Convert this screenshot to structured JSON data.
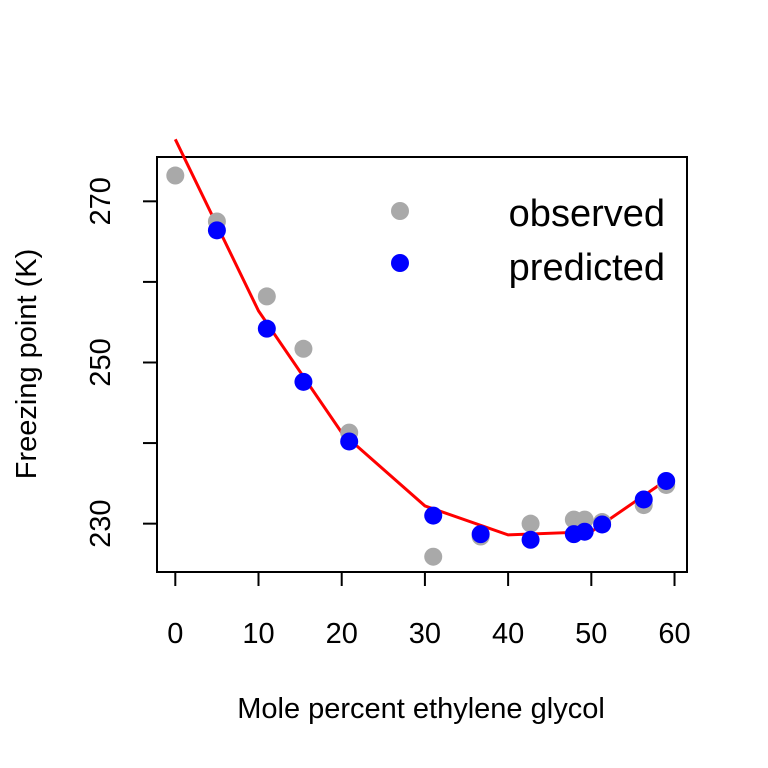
{
  "chart_data": {
    "type": "scatter",
    "title": "",
    "xlabel": "Mole percent ethylene glycol",
    "ylabel": "Freezing point (K)",
    "xlim": [
      -2.2,
      61.5
    ],
    "ylim": [
      224,
      275.5
    ],
    "x_ticks": [
      0,
      10,
      20,
      30,
      40,
      50,
      60
    ],
    "y_ticks_labeled": [
      230,
      250,
      270
    ],
    "y_ticks_minor": [
      240,
      260
    ],
    "grid": false,
    "legend": {
      "position": "top-right",
      "entries": [
        "observed",
        "predicted"
      ]
    },
    "series": [
      {
        "name": "observed",
        "color": "#a9a9a9",
        "marker": "circle",
        "points": [
          [
            0,
            273.2
          ],
          [
            5.0,
            267.5
          ],
          [
            11.0,
            258.2
          ],
          [
            15.4,
            251.7
          ],
          [
            20.9,
            241.3
          ],
          [
            31.0,
            225.9
          ],
          [
            36.7,
            228.4
          ],
          [
            42.7,
            230.0
          ],
          [
            47.9,
            230.5
          ],
          [
            49.2,
            230.5
          ],
          [
            51.3,
            230.2
          ],
          [
            56.3,
            232.3
          ],
          [
            59.0,
            234.8
          ]
        ]
      },
      {
        "name": "predicted",
        "color": "#0000ff",
        "marker": "circle",
        "points": [
          [
            5.0,
            266.4
          ],
          [
            11.0,
            254.2
          ],
          [
            15.4,
            247.6
          ],
          [
            20.9,
            240.2
          ],
          [
            31.0,
            231.0
          ],
          [
            36.7,
            228.7
          ],
          [
            42.7,
            228.0
          ],
          [
            47.9,
            228.7
          ],
          [
            49.2,
            229.0
          ],
          [
            51.3,
            229.9
          ],
          [
            56.3,
            233.0
          ],
          [
            59.0,
            235.3
          ]
        ]
      },
      {
        "type": "line",
        "color": "#ff0000",
        "fit": "quadratic",
        "x_range": [
          -2.2,
          59.3
        ],
        "points": [
          [
            0.0,
            277.7
          ],
          [
            10.0,
            256.4
          ],
          [
            20.0,
            241.3
          ],
          [
            30.0,
            232.2
          ],
          [
            40.0,
            228.6
          ],
          [
            50.0,
            229.0
          ],
          [
            59.3,
            235.6
          ]
        ]
      }
    ]
  }
}
